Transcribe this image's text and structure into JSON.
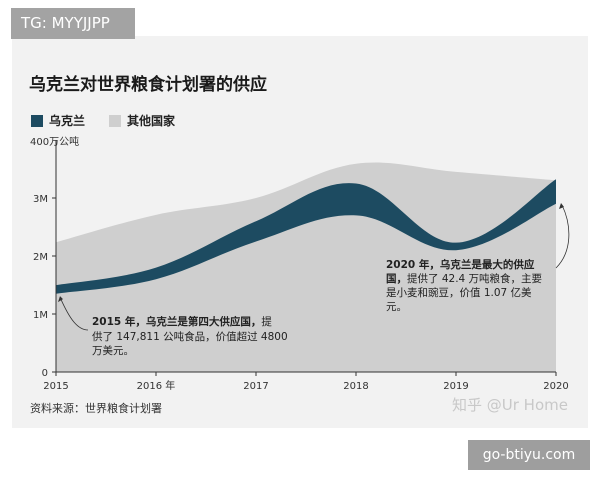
{
  "header": {
    "tag": "TG: MYYJJPP"
  },
  "chart_data": {
    "type": "area",
    "title": "乌克兰对世界粮食计划署的供应",
    "y_unit_label": "400万公吨",
    "ylim": [
      0,
      4000000
    ],
    "y_ticks": [
      {
        "value": 0,
        "label": "0"
      },
      {
        "value": 1000000,
        "label": "1M"
      },
      {
        "value": 2000000,
        "label": "2M"
      },
      {
        "value": 3000000,
        "label": "3M"
      }
    ],
    "x_ticks": [
      "2015",
      "2016 年",
      "2017",
      "2018",
      "2019",
      "2020"
    ],
    "x": [
      2015,
      2016,
      2017,
      2018,
      2019,
      2020
    ],
    "series": [
      {
        "name": "乌克兰",
        "color": "#1d4b61",
        "values": [
          147811,
          200000,
          350000,
          550000,
          130000,
          424000
        ]
      },
      {
        "name": "其他国家",
        "color": "#cfcfcf",
        "values": [
          2090000,
          2510000,
          2650000,
          3040000,
          3320000,
          2880000
        ]
      }
    ],
    "totals": [
      2237811,
      2710000,
      3000000,
      3590000,
      3450000,
      3304000
    ],
    "legend_position": "top-left",
    "grid": false,
    "annotations": [
      {
        "title": "2015 年，乌克兰是第四大供应国，",
        "lines": [
          "提",
          "供了 147,811 公吨食品，价值超过 4800",
          "万美元。"
        ]
      },
      {
        "title": "2020 年，乌克兰是最大的供应",
        "lines": [
          "国，提供了 42.4 万吨粮食，主要",
          "是小麦和豌豆，价值 1.07 亿美",
          "元。"
        ]
      }
    ],
    "source": "资料来源：世界粮食计划署"
  },
  "watermark": "知乎 @Ur Home",
  "footer": {
    "badge": "go-btiyu.com"
  }
}
